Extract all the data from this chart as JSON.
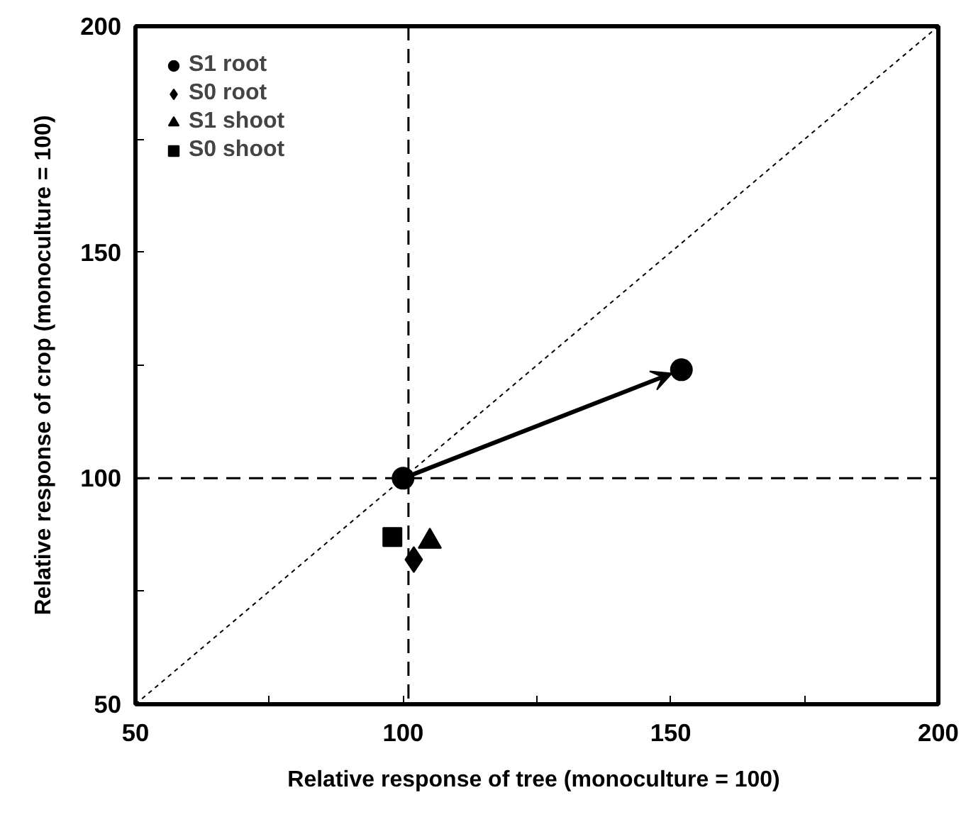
{
  "chart_data": {
    "type": "scatter",
    "xlabel": "Relative response of tree  (monoculture = 100)",
    "ylabel": "Relative response of crop (monoculture = 100)",
    "xlim": [
      50,
      200
    ],
    "ylim": [
      50,
      200
    ],
    "xticks": [
      50,
      {
        "value": 75,
        "label": null
      },
      100,
      {
        "value": 125,
        "label": null
      },
      150,
      {
        "value": 175,
        "label": null
      },
      200
    ],
    "yticks": [
      50,
      {
        "value": 75,
        "label": null
      },
      100,
      {
        "value": 125,
        "label": null
      },
      150,
      {
        "value": 175,
        "label": null
      },
      200
    ],
    "grid": false,
    "legend": "top left",
    "series": [
      {
        "name": "S1 root",
        "color": "#000000",
        "marker": "circle",
        "x": [
          100,
          152
        ],
        "values": [
          100,
          124
        ]
      },
      {
        "name": "S0 root",
        "color": "#000000",
        "marker": "diamond",
        "x": [
          102
        ],
        "values": [
          82
        ]
      },
      {
        "name": "S1 shoot",
        "color": "#000000",
        "marker": "triangle",
        "x": [
          105
        ],
        "values": [
          86
        ]
      },
      {
        "name": "S0 shoot",
        "color": "#000000",
        "marker": "square",
        "x": [
          98
        ],
        "values": [
          87
        ]
      },
      {
        "type": "line",
        "color": "#000000",
        "line_style": "dotted",
        "marker": "none",
        "x": [
          50,
          200
        ],
        "values": [
          50,
          200
        ]
      }
    ],
    "ref_lines": [
      {
        "axis": "x",
        "value": 101,
        "label": null,
        "color": "#000000",
        "line_style": "dashed"
      },
      {
        "axis": "y",
        "value": 100,
        "label": null,
        "color": "#000000",
        "line_style": "dashed"
      }
    ]
  }
}
